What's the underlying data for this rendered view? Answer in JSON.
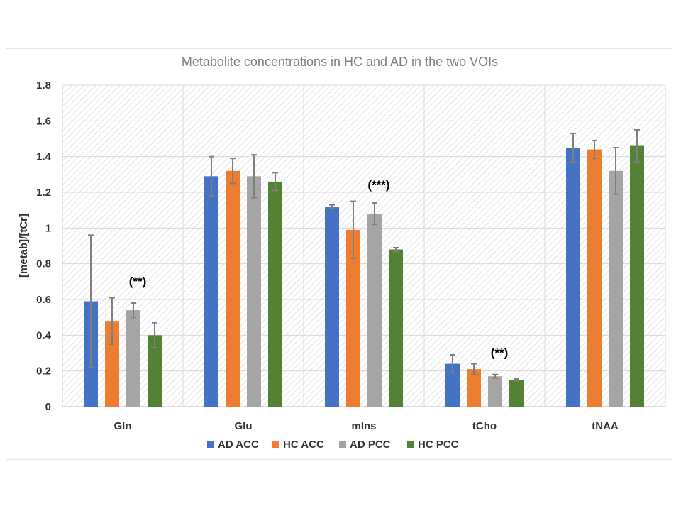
{
  "chart_data": {
    "type": "bar",
    "title": "Metabolite concentrations in HC and AD in the two VOIs",
    "xlabel": "",
    "ylabel": "[metab]/[tCr]",
    "ylim": [
      0,
      1.8
    ],
    "yticks": [
      0,
      0.2,
      0.4,
      0.6,
      0.8,
      1,
      1.2,
      1.4,
      1.6,
      1.8
    ],
    "ytick_labels": [
      "0",
      "0.2",
      "0.4",
      "0.6",
      "0.8",
      "1",
      "1.2",
      "1.4",
      "1.6",
      "1.8"
    ],
    "categories": [
      "Gln",
      "Glu",
      "mIns",
      "tCho",
      "tNAA"
    ],
    "series": [
      {
        "name": "AD ACC",
        "color": "#4472c4",
        "values": [
          0.59,
          1.29,
          1.12,
          0.24,
          1.45
        ],
        "errors": [
          0.37,
          0.11,
          0.01,
          0.05,
          0.08
        ]
      },
      {
        "name": "HC ACC",
        "color": "#ed7d31",
        "values": [
          0.48,
          1.32,
          0.99,
          0.21,
          1.44
        ],
        "errors": [
          0.13,
          0.07,
          0.16,
          0.03,
          0.05
        ]
      },
      {
        "name": "AD PCC",
        "color": "#a5a5a5",
        "values": [
          0.54,
          1.29,
          1.08,
          0.17,
          1.32
        ],
        "errors": [
          0.04,
          0.12,
          0.06,
          0.01,
          0.13
        ]
      },
      {
        "name": "HC PCC",
        "color": "#548235",
        "values": [
          0.4,
          1.26,
          0.88,
          0.15,
          1.46
        ],
        "errors": [
          0.07,
          0.05,
          0.01,
          0.005,
          0.09
        ]
      }
    ],
    "annotations": [
      {
        "text": "(**)",
        "category": "Gln",
        "series": "AD PCC",
        "value": 0.68
      },
      {
        "text": "(***)",
        "category": "mIns",
        "series": "AD PCC",
        "value": 1.22
      },
      {
        "text": "(**)",
        "category": "tCho",
        "series": "AD PCC",
        "value": 0.28
      }
    ],
    "legend_position": "bottom",
    "grid": true
  }
}
